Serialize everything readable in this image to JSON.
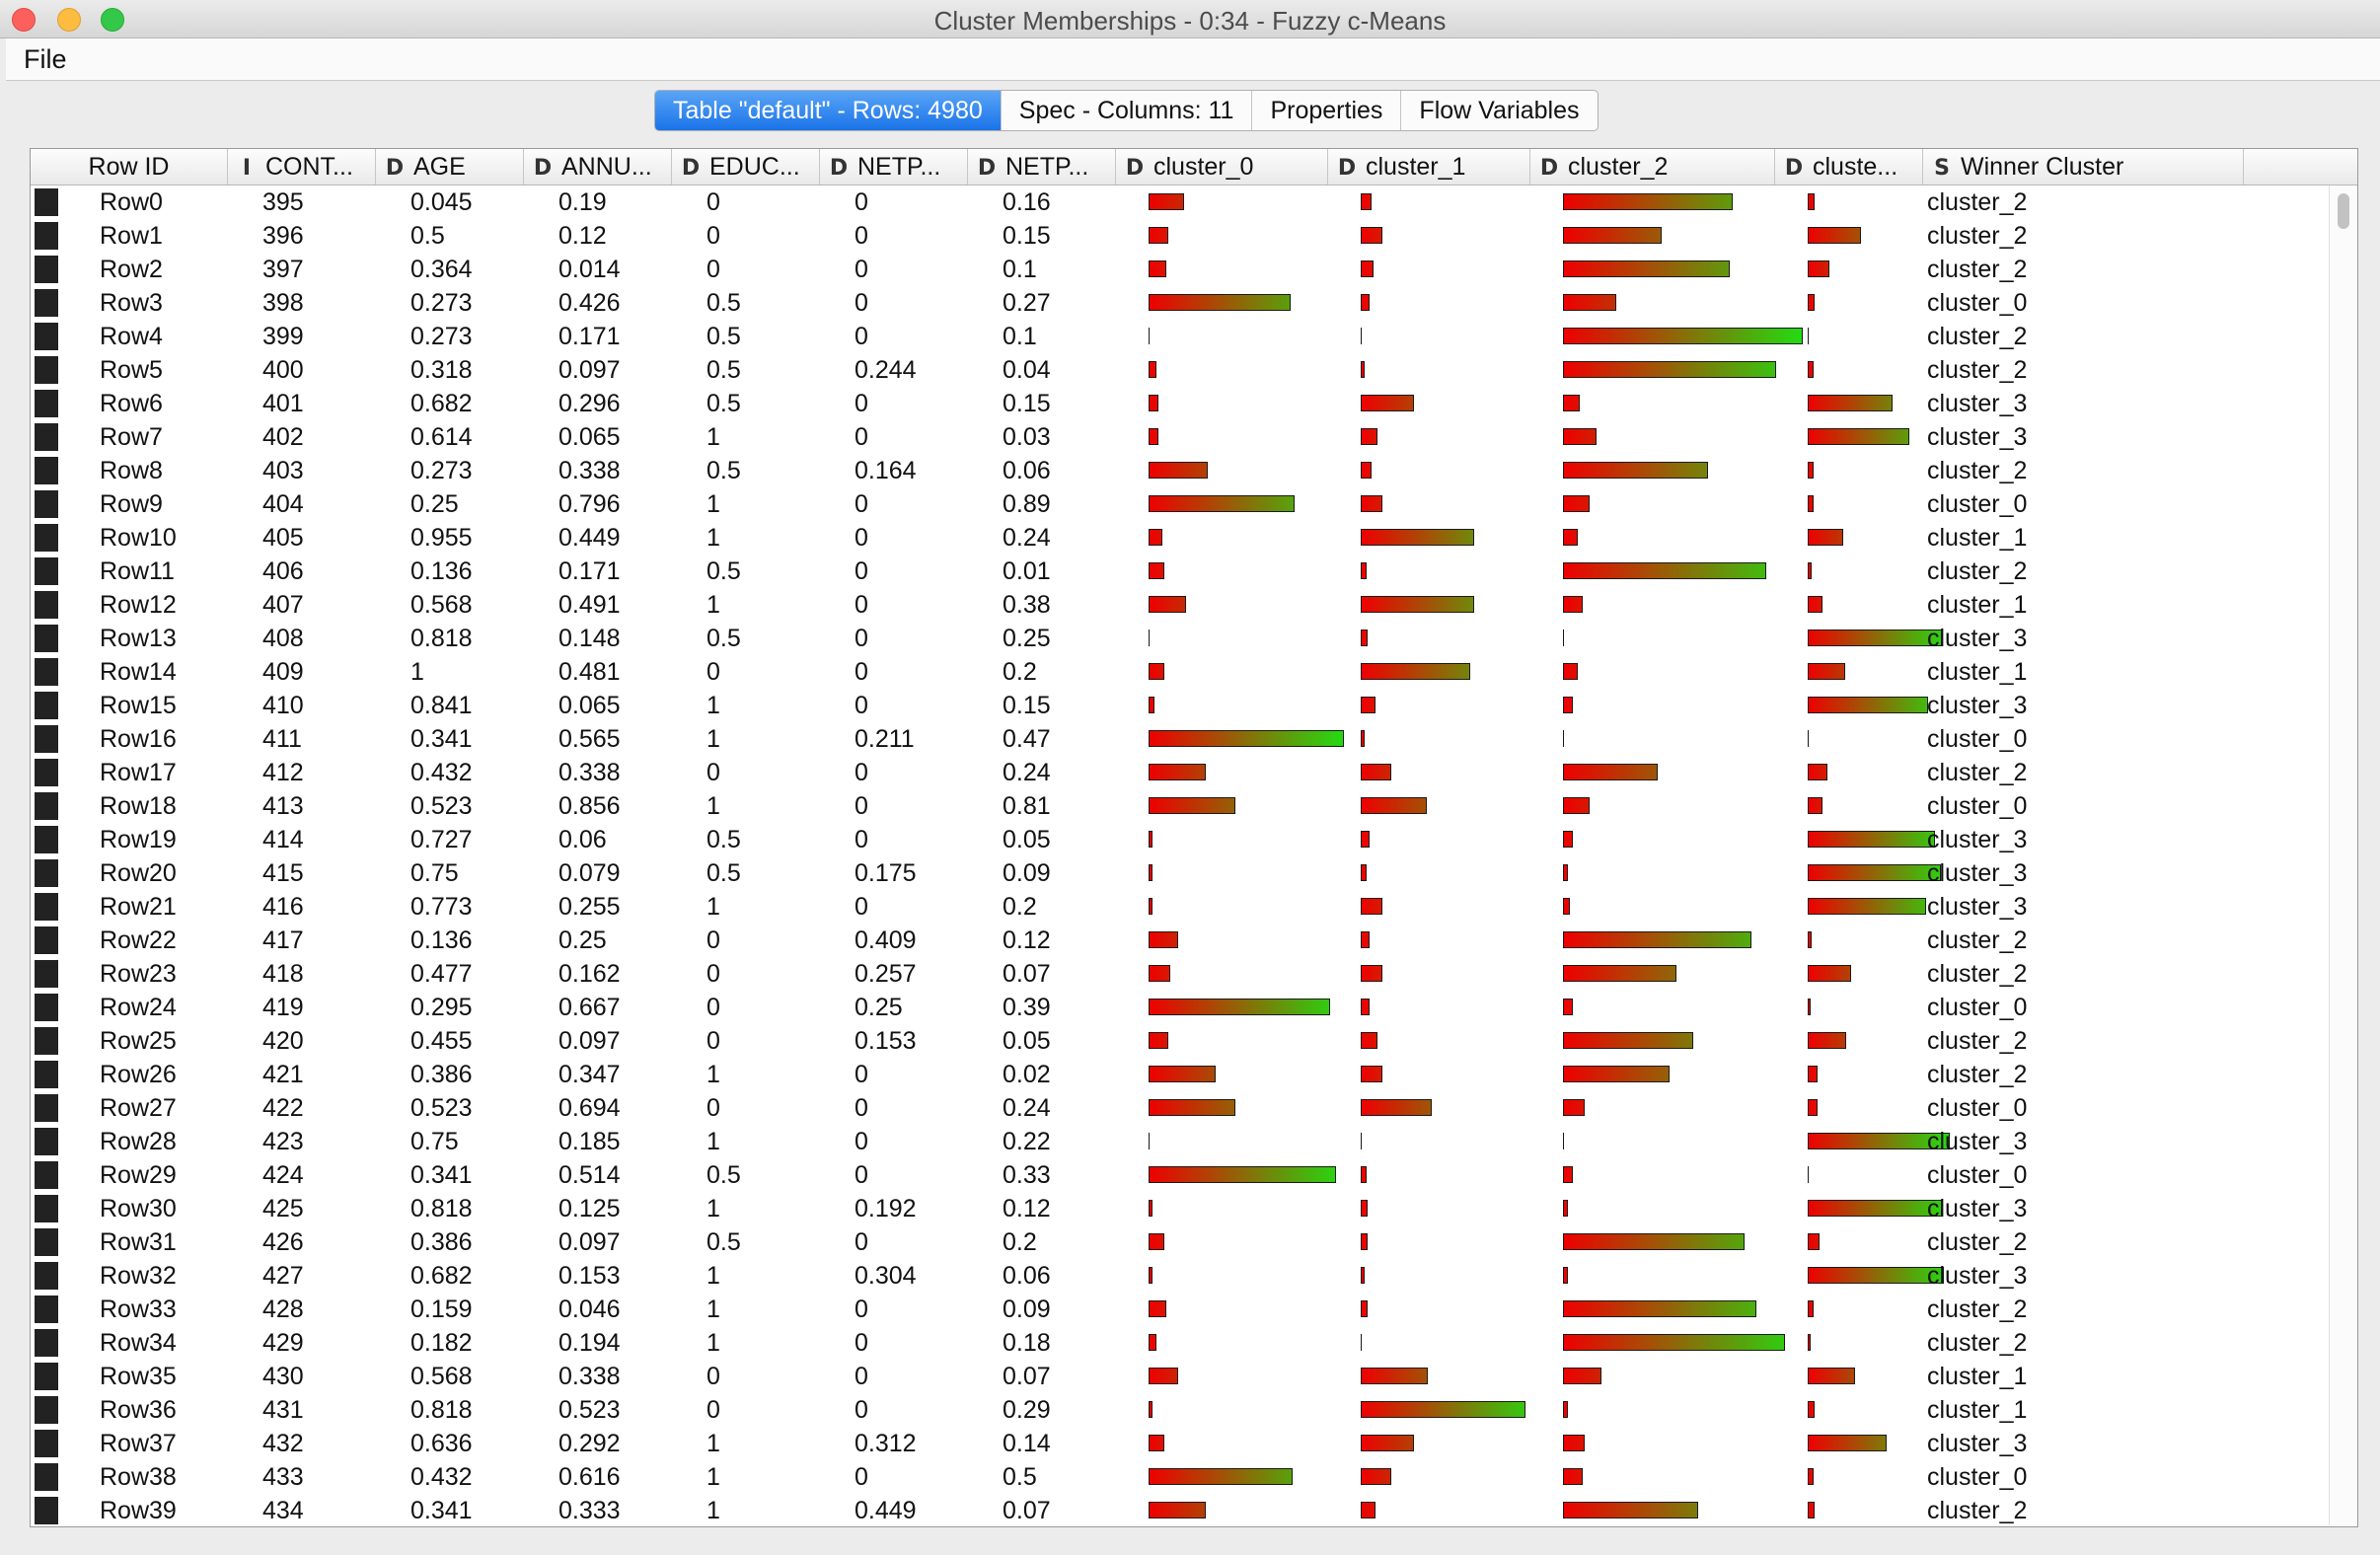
{
  "window": {
    "title": "Cluster Memberships - 0:34 - Fuzzy c-Means"
  },
  "menu": {
    "file": "File"
  },
  "tabs": [
    {
      "label": "Table \"default\" - Rows: 4980",
      "active": true
    },
    {
      "label": "Spec - Columns: 11",
      "active": false
    },
    {
      "label": "Properties",
      "active": false
    },
    {
      "label": "Flow Variables",
      "active": false
    }
  ],
  "columns": [
    {
      "label": "Row ID",
      "type_icon": ""
    },
    {
      "label": "CONT...",
      "type_icon": "I"
    },
    {
      "label": "AGE",
      "type_icon": "D"
    },
    {
      "label": "ANNU...",
      "type_icon": "D"
    },
    {
      "label": "EDUC...",
      "type_icon": "D"
    },
    {
      "label": "NETP...",
      "type_icon": "D"
    },
    {
      "label": "NETP...",
      "type_icon": "D"
    },
    {
      "label": "cluster_0",
      "type_icon": "D"
    },
    {
      "label": "cluster_1",
      "type_icon": "D"
    },
    {
      "label": "cluster_2",
      "type_icon": "D"
    },
    {
      "label": "cluste...",
      "type_icon": "D"
    },
    {
      "label": "Winner Cluster",
      "type_icon": "S"
    }
  ],
  "bar_colors": {
    "low": "#ee0000",
    "high": "#22dd11"
  },
  "rows": [
    {
      "id": "Row0",
      "cont": "395",
      "age": "0.045",
      "annu": "0.19",
      "educ": "0",
      "netp1": "0",
      "netp2": "0.16",
      "m": [
        0.18,
        0.06,
        0.7,
        0.05
      ],
      "winner": "cluster_2"
    },
    {
      "id": "Row1",
      "cont": "396",
      "age": "0.5",
      "annu": "0.12",
      "educ": "0",
      "netp1": "0",
      "netp2": "0.15",
      "m": [
        0.1,
        0.12,
        0.41,
        0.37
      ],
      "winner": "cluster_2"
    },
    {
      "id": "Row2",
      "cont": "397",
      "age": "0.364",
      "annu": "0.014",
      "educ": "0",
      "netp1": "0",
      "netp2": "0.1",
      "m": [
        0.09,
        0.07,
        0.69,
        0.15
      ],
      "winner": "cluster_2"
    },
    {
      "id": "Row3",
      "cont": "398",
      "age": "0.273",
      "annu": "0.426",
      "educ": "0.5",
      "netp1": "0",
      "netp2": "0.27",
      "m": [
        0.72,
        0.05,
        0.22,
        0.05
      ],
      "winner": "cluster_0"
    },
    {
      "id": "Row4",
      "cont": "399",
      "age": "0.273",
      "annu": "0.171",
      "educ": "0.5",
      "netp1": "0",
      "netp2": "0.1",
      "m": [
        0.01,
        0.01,
        0.99,
        0.01
      ],
      "winner": "cluster_2"
    },
    {
      "id": "Row5",
      "cont": "400",
      "age": "0.318",
      "annu": "0.097",
      "educ": "0.5",
      "netp1": "0.244",
      "netp2": "0.04",
      "m": [
        0.04,
        0.02,
        0.88,
        0.04
      ],
      "winner": "cluster_2"
    },
    {
      "id": "Row6",
      "cont": "401",
      "age": "0.682",
      "annu": "0.296",
      "educ": "0.5",
      "netp1": "0",
      "netp2": "0.15",
      "m": [
        0.05,
        0.29,
        0.07,
        0.59
      ],
      "winner": "cluster_3"
    },
    {
      "id": "Row7",
      "cont": "402",
      "age": "0.614",
      "annu": "0.065",
      "educ": "1",
      "netp1": "0",
      "netp2": "0.03",
      "m": [
        0.05,
        0.09,
        0.14,
        0.71
      ],
      "winner": "cluster_3"
    },
    {
      "id": "Row8",
      "cont": "403",
      "age": "0.273",
      "annu": "0.338",
      "educ": "0.5",
      "netp1": "0.164",
      "netp2": "0.06",
      "m": [
        0.3,
        0.06,
        0.6,
        0.04
      ],
      "winner": "cluster_2"
    },
    {
      "id": "Row9",
      "cont": "404",
      "age": "0.25",
      "annu": "0.796",
      "educ": "1",
      "netp1": "0",
      "netp2": "0.89",
      "m": [
        0.74,
        0.12,
        0.11,
        0.04
      ],
      "winner": "cluster_0"
    },
    {
      "id": "Row10",
      "cont": "405",
      "age": "0.955",
      "annu": "0.449",
      "educ": "1",
      "netp1": "0",
      "netp2": "0.24",
      "m": [
        0.07,
        0.62,
        0.06,
        0.25
      ],
      "winner": "cluster_1"
    },
    {
      "id": "Row11",
      "cont": "406",
      "age": "0.136",
      "annu": "0.171",
      "educ": "0.5",
      "netp1": "0",
      "netp2": "0.01",
      "m": [
        0.08,
        0.03,
        0.84,
        0.03
      ],
      "winner": "cluster_2"
    },
    {
      "id": "Row12",
      "cont": "407",
      "age": "0.568",
      "annu": "0.491",
      "educ": "1",
      "netp1": "0",
      "netp2": "0.38",
      "m": [
        0.19,
        0.62,
        0.08,
        0.1
      ],
      "winner": "cluster_1"
    },
    {
      "id": "Row13",
      "cont": "408",
      "age": "0.818",
      "annu": "0.148",
      "educ": "0.5",
      "netp1": "0",
      "netp2": "0.25",
      "m": [
        0.01,
        0.04,
        0.01,
        0.94
      ],
      "winner": "cluster_3"
    },
    {
      "id": "Row14",
      "cont": "409",
      "age": "1",
      "annu": "0.481",
      "educ": "0",
      "netp1": "0",
      "netp2": "0.2",
      "m": [
        0.08,
        0.6,
        0.06,
        0.26
      ],
      "winner": "cluster_1"
    },
    {
      "id": "Row15",
      "cont": "410",
      "age": "0.841",
      "annu": "0.065",
      "educ": "1",
      "netp1": "0",
      "netp2": "0.15",
      "m": [
        0.03,
        0.08,
        0.04,
        0.84
      ],
      "winner": "cluster_3"
    },
    {
      "id": "Row16",
      "cont": "411",
      "age": "0.341",
      "annu": "0.565",
      "educ": "1",
      "netp1": "0.211",
      "netp2": "0.47",
      "m": [
        0.99,
        0.02,
        0.01,
        0.01
      ],
      "winner": "cluster_0"
    },
    {
      "id": "Row17",
      "cont": "412",
      "age": "0.432",
      "annu": "0.338",
      "educ": "0",
      "netp1": "0",
      "netp2": "0.24",
      "m": [
        0.29,
        0.17,
        0.39,
        0.14
      ],
      "winner": "cluster_2"
    },
    {
      "id": "Row18",
      "cont": "413",
      "age": "0.523",
      "annu": "0.856",
      "educ": "1",
      "netp1": "0",
      "netp2": "0.81",
      "m": [
        0.44,
        0.36,
        0.11,
        0.1
      ],
      "winner": "cluster_0"
    },
    {
      "id": "Row19",
      "cont": "414",
      "age": "0.727",
      "annu": "0.06",
      "educ": "0.5",
      "netp1": "0",
      "netp2": "0.05",
      "m": [
        0.02,
        0.05,
        0.04,
        0.89
      ],
      "winner": "cluster_3"
    },
    {
      "id": "Row20",
      "cont": "415",
      "age": "0.75",
      "annu": "0.079",
      "educ": "0.5",
      "netp1": "0.175",
      "netp2": "0.09",
      "m": [
        0.02,
        0.03,
        0.02,
        0.93
      ],
      "winner": "cluster_3"
    },
    {
      "id": "Row21",
      "cont": "416",
      "age": "0.773",
      "annu": "0.255",
      "educ": "1",
      "netp1": "0",
      "netp2": "0.2",
      "m": [
        0.02,
        0.12,
        0.03,
        0.83
      ],
      "winner": "cluster_3"
    },
    {
      "id": "Row22",
      "cont": "417",
      "age": "0.136",
      "annu": "0.25",
      "educ": "0",
      "netp1": "0.409",
      "netp2": "0.12",
      "m": [
        0.15,
        0.05,
        0.78,
        0.03
      ],
      "winner": "cluster_2"
    },
    {
      "id": "Row23",
      "cont": "418",
      "age": "0.477",
      "annu": "0.162",
      "educ": "0",
      "netp1": "0.257",
      "netp2": "0.07",
      "m": [
        0.11,
        0.12,
        0.47,
        0.3
      ],
      "winner": "cluster_2"
    },
    {
      "id": "Row24",
      "cont": "419",
      "age": "0.295",
      "annu": "0.667",
      "educ": "0",
      "netp1": "0.25",
      "netp2": "0.39",
      "m": [
        0.92,
        0.05,
        0.04,
        0.02
      ],
      "winner": "cluster_0"
    },
    {
      "id": "Row25",
      "cont": "420",
      "age": "0.455",
      "annu": "0.097",
      "educ": "0",
      "netp1": "0.153",
      "netp2": "0.05",
      "m": [
        0.1,
        0.09,
        0.54,
        0.27
      ],
      "winner": "cluster_2"
    },
    {
      "id": "Row26",
      "cont": "421",
      "age": "0.386",
      "annu": "0.347",
      "educ": "1",
      "netp1": "0",
      "netp2": "0.02",
      "m": [
        0.34,
        0.12,
        0.44,
        0.07
      ],
      "winner": "cluster_2"
    },
    {
      "id": "Row27",
      "cont": "422",
      "age": "0.523",
      "annu": "0.694",
      "educ": "0",
      "netp1": "0",
      "netp2": "0.24",
      "m": [
        0.44,
        0.39,
        0.09,
        0.07
      ],
      "winner": "cluster_0"
    },
    {
      "id": "Row28",
      "cont": "423",
      "age": "0.75",
      "annu": "0.185",
      "educ": "1",
      "netp1": "0",
      "netp2": "0.22",
      "m": [
        0.01,
        0.01,
        0.01,
        0.99
      ],
      "winner": "cluster_3"
    },
    {
      "id": "Row29",
      "cont": "424",
      "age": "0.341",
      "annu": "0.514",
      "educ": "0.5",
      "netp1": "0",
      "netp2": "0.33",
      "m": [
        0.95,
        0.03,
        0.04,
        0.01
      ],
      "winner": "cluster_0"
    },
    {
      "id": "Row30",
      "cont": "425",
      "age": "0.818",
      "annu": "0.125",
      "educ": "1",
      "netp1": "0.192",
      "netp2": "0.12",
      "m": [
        0.02,
        0.04,
        0.02,
        0.94
      ],
      "winner": "cluster_3"
    },
    {
      "id": "Row31",
      "cont": "426",
      "age": "0.386",
      "annu": "0.097",
      "educ": "0.5",
      "netp1": "0",
      "netp2": "0.2",
      "m": [
        0.08,
        0.04,
        0.75,
        0.08
      ],
      "winner": "cluster_2"
    },
    {
      "id": "Row32",
      "cont": "427",
      "age": "0.682",
      "annu": "0.153",
      "educ": "1",
      "netp1": "0.304",
      "netp2": "0.06",
      "m": [
        0.02,
        0.02,
        0.02,
        0.95
      ],
      "winner": "cluster_3"
    },
    {
      "id": "Row33",
      "cont": "428",
      "age": "0.159",
      "annu": "0.046",
      "educ": "1",
      "netp1": "0",
      "netp2": "0.09",
      "m": [
        0.09,
        0.04,
        0.8,
        0.04
      ],
      "winner": "cluster_2"
    },
    {
      "id": "Row34",
      "cont": "429",
      "age": "0.182",
      "annu": "0.194",
      "educ": "1",
      "netp1": "0",
      "netp2": "0.18",
      "m": [
        0.04,
        0.01,
        0.92,
        0.02
      ],
      "winner": "cluster_2"
    },
    {
      "id": "Row35",
      "cont": "430",
      "age": "0.568",
      "annu": "0.338",
      "educ": "0",
      "netp1": "0",
      "netp2": "0.07",
      "m": [
        0.15,
        0.37,
        0.16,
        0.33
      ],
      "winner": "cluster_1"
    },
    {
      "id": "Row36",
      "cont": "431",
      "age": "0.818",
      "annu": "0.523",
      "educ": "0",
      "netp1": "0",
      "netp2": "0.29",
      "m": [
        0.02,
        0.9,
        0.02,
        0.05
      ],
      "winner": "cluster_1"
    },
    {
      "id": "Row37",
      "cont": "432",
      "age": "0.636",
      "annu": "0.292",
      "educ": "1",
      "netp1": "0.312",
      "netp2": "0.14",
      "m": [
        0.08,
        0.29,
        0.09,
        0.55
      ],
      "winner": "cluster_3"
    },
    {
      "id": "Row38",
      "cont": "433",
      "age": "0.432",
      "annu": "0.616",
      "educ": "1",
      "netp1": "0",
      "netp2": "0.5",
      "m": [
        0.73,
        0.17,
        0.08,
        0.04
      ],
      "winner": "cluster_0"
    },
    {
      "id": "Row39",
      "cont": "434",
      "age": "0.341",
      "annu": "0.333",
      "educ": "1",
      "netp1": "0.449",
      "netp2": "0.07",
      "m": [
        0.29,
        0.08,
        0.56,
        0.05
      ],
      "winner": "cluster_2"
    }
  ]
}
